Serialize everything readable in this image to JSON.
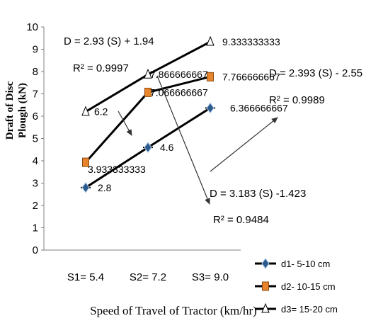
{
  "chart_data": {
    "type": "line",
    "categories": [
      "S1= 5.4",
      "S2= 7.2",
      "S3= 9.0"
    ],
    "ylim": [
      0,
      10
    ],
    "yticks": [
      0,
      1,
      2,
      3,
      4,
      5,
      6,
      7,
      8,
      9,
      10
    ],
    "xlabel": "Speed of Travel of Tractor (km/hr)",
    "ylabel_line1": "Draft of Disc",
    "ylabel_line2": "Plough (kN)",
    "series": [
      {
        "name": "d1- 5-10 cm",
        "values": [
          2.8,
          4.6,
          6.366666667
        ],
        "labels": [
          "2.8",
          "4.6",
          "6.366666667"
        ],
        "marker": "diamond",
        "marker_color": "#2c5a8c"
      },
      {
        "name": "d2- 10-15 cm",
        "values": [
          3.933333333,
          7.066666667,
          7.766666667
        ],
        "labels": [
          "3.933333333",
          "7.066666667",
          "7.766666667"
        ],
        "marker": "square",
        "marker_color": "#e8852c"
      },
      {
        "name": "d3= 15-20 cm",
        "values": [
          6.2,
          7.866666667,
          9.333333333
        ],
        "labels": [
          "6.2",
          "7.866666667",
          "9.333333333"
        ],
        "marker": "triangle",
        "marker_color": "#ffffff"
      }
    ],
    "annotations": [
      {
        "eq": "D = 2.93 (S) + 1.94",
        "r2": "R² = 0.9997"
      },
      {
        "eq": "D = 2.393 (S) - 2.55",
        "r2": "R² = 0.9989"
      },
      {
        "eq": "D = 3.183 (S) -1.423",
        "r2": "R² = 0.9484"
      }
    ],
    "grid": false,
    "legend_position": "bottom-right"
  }
}
